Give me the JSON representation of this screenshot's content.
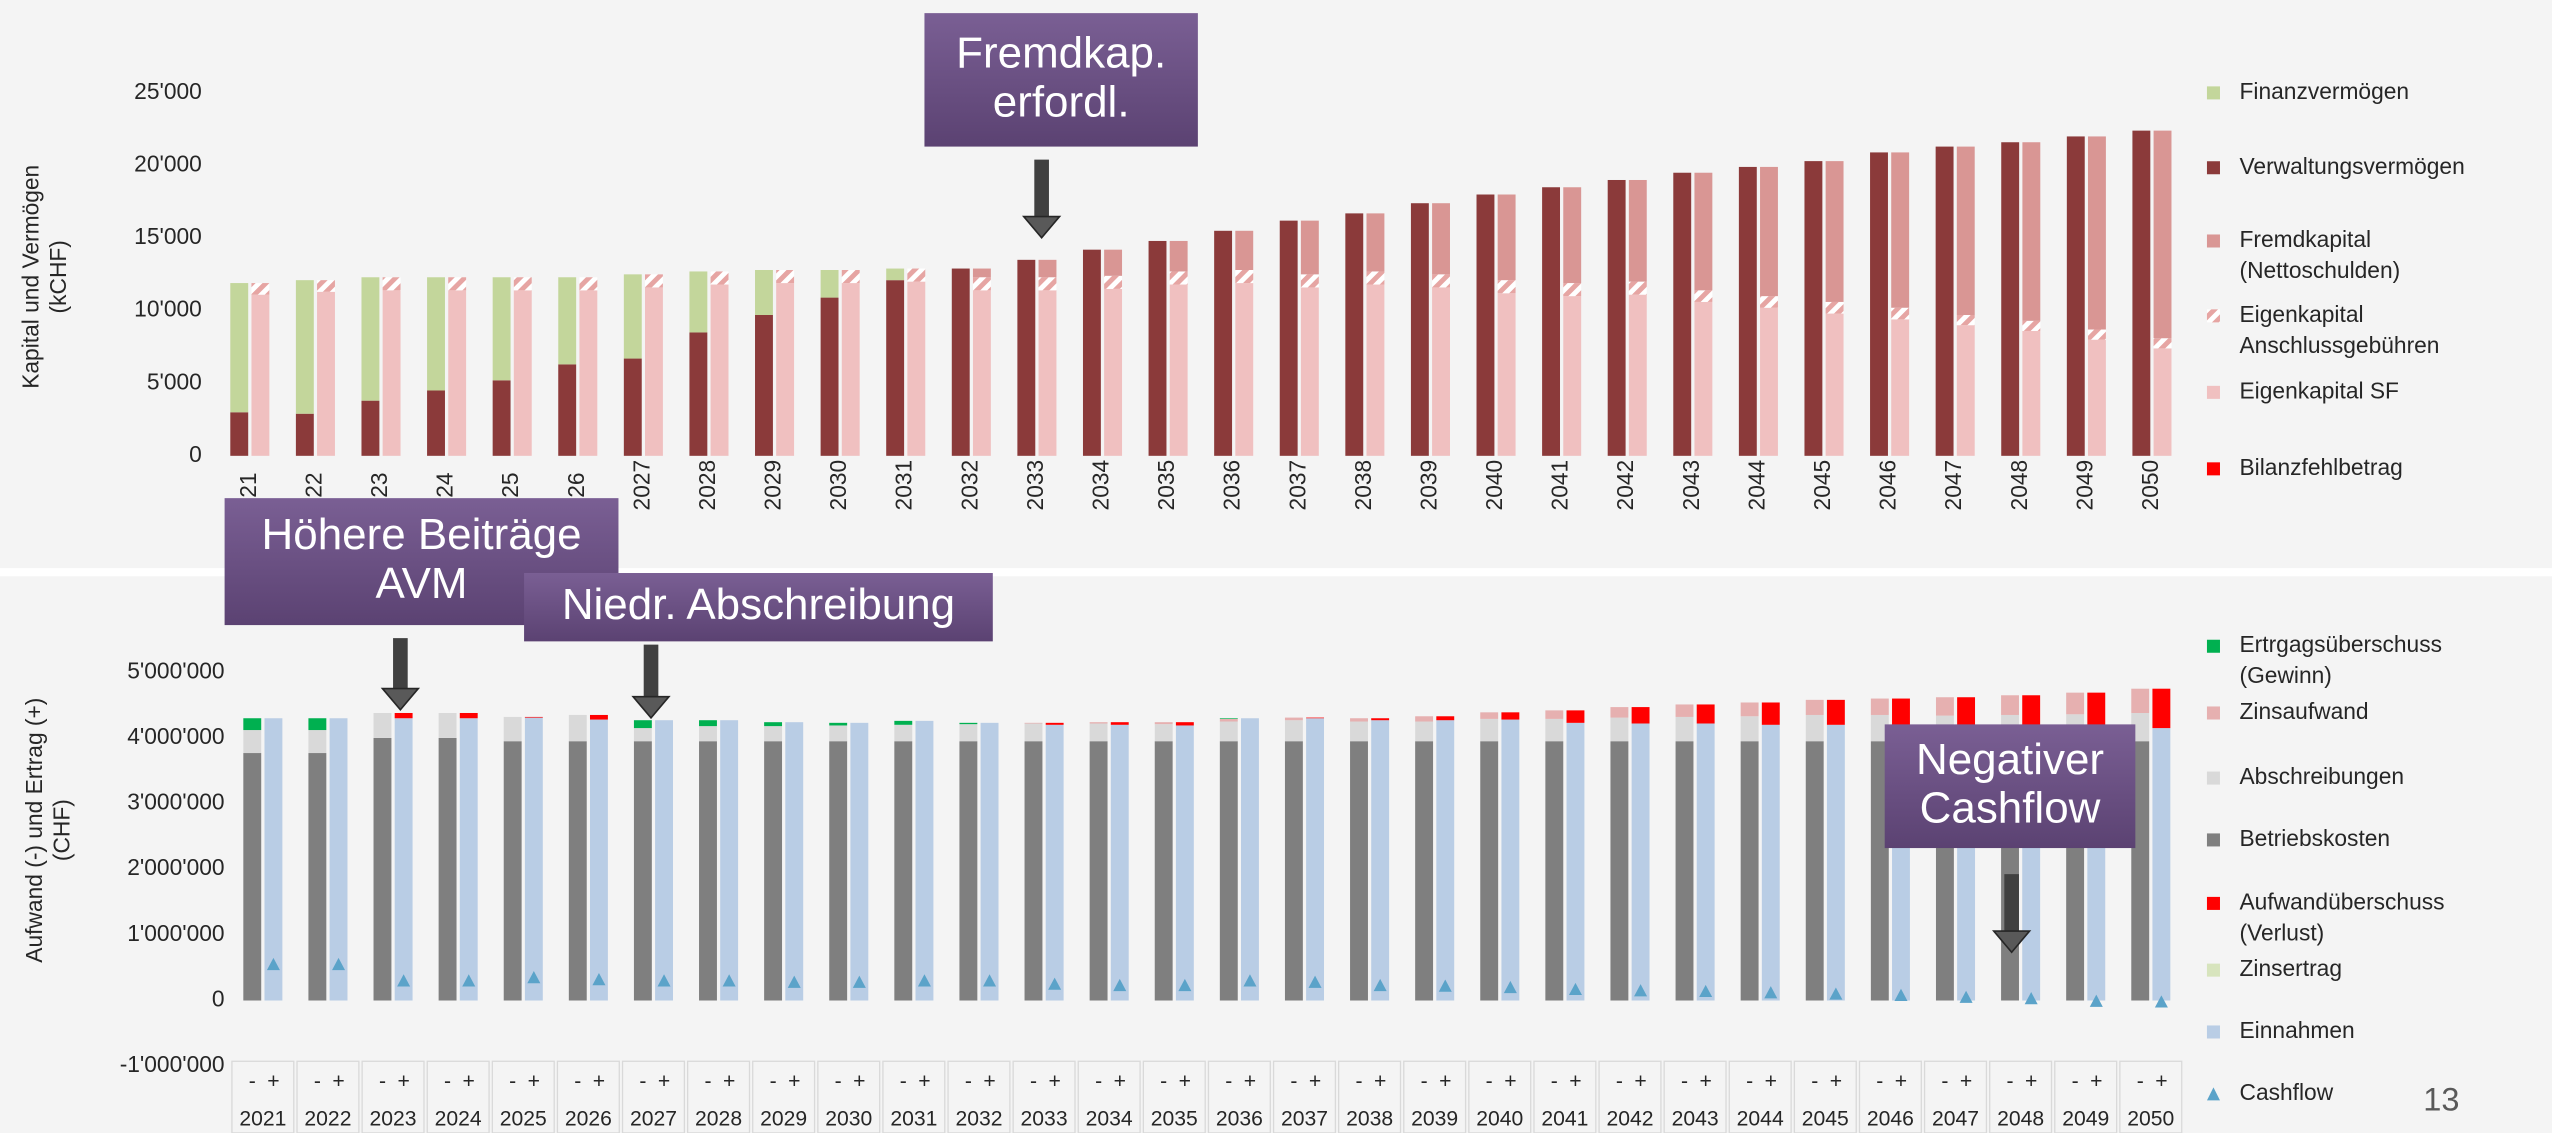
{
  "chart_data": [
    {
      "type": "bar",
      "stacked": true,
      "y_label": "Kapital und Vermögen\n(kCHF)",
      "categories": [
        "21",
        "22",
        "23",
        "24",
        "25",
        "26",
        "2027",
        "2028",
        "2029",
        "2030",
        "2031",
        "2032",
        "2033",
        "2034",
        "2035",
        "2036",
        "2037",
        "2038",
        "2039",
        "2040",
        "2041",
        "2042",
        "2043",
        "2044",
        "2045",
        "2046",
        "2047",
        "2048",
        "2049",
        "2050"
      ],
      "ylim": [
        0,
        25000
      ],
      "yticks": [
        0,
        {
          "value": 5000,
          "label": "5'000"
        },
        {
          "value": 10000,
          "label": "10'000"
        },
        {
          "value": 15000,
          "label": "15'000"
        },
        {
          "value": 20000,
          "label": "20'000"
        },
        {
          "value": 25000,
          "label": "25'000"
        }
      ],
      "series": [
        {
          "name": "Finanzvermögen",
          "color": "#c3d69b",
          "stack": "left",
          "values": [
            8900,
            9200,
            8500,
            7800,
            7100,
            6000,
            5800,
            4200,
            3100,
            1900,
            800,
            0,
            0,
            0,
            0,
            0,
            0,
            0,
            0,
            0,
            0,
            0,
            0,
            0,
            0,
            0,
            0,
            0,
            0,
            0
          ]
        },
        {
          "name": "Verwaltungsvermögen",
          "color": "#8b3a3a",
          "stack": "left",
          "values": [
            3000,
            2900,
            3800,
            4500,
            5200,
            6300,
            6700,
            8500,
            9700,
            10900,
            12100,
            12900,
            13500,
            14200,
            14800,
            15500,
            16200,
            16700,
            17400,
            18000,
            18500,
            19000,
            19500,
            19900,
            20300,
            20900,
            21300,
            21600,
            22000,
            22400
          ]
        },
        {
          "name": "Fremdkapital\n(Nettoschulden)",
          "color": "#d99694",
          "stack": "right",
          "values": [
            0,
            0,
            0,
            0,
            0,
            0,
            0,
            0,
            0,
            0,
            0,
            600,
            1200,
            1800,
            2100,
            2700,
            3700,
            4000,
            4900,
            5900,
            6600,
            7000,
            8100,
            8900,
            9700,
            10700,
            11600,
            12300,
            13300,
            14300
          ]
        },
        {
          "name": "Eigenkapital\nAnschlussgebühren",
          "color": "#e6a5a3",
          "hatch": true,
          "stack": "right",
          "values": [
            800,
            800,
            900,
            900,
            900,
            900,
            900,
            900,
            900,
            900,
            900,
            900,
            900,
            900,
            900,
            900,
            900,
            900,
            900,
            900,
            900,
            900,
            800,
            800,
            800,
            800,
            700,
            700,
            700,
            700
          ]
        },
        {
          "name": "Eigenkapital SF",
          "color": "#f0c0c0",
          "stack": "right",
          "values": [
            11100,
            11300,
            11400,
            11400,
            11400,
            11400,
            11600,
            11800,
            11900,
            11900,
            12000,
            11400,
            11400,
            11500,
            11800,
            11900,
            11600,
            11800,
            11600,
            11200,
            11000,
            11100,
            10600,
            10200,
            9800,
            9400,
            9000,
            8600,
            8000,
            7400
          ]
        },
        {
          "name": "Bilanzfehlbetrag",
          "color": "#ff0000",
          "stack": "right",
          "values": [
            0,
            0,
            0,
            0,
            0,
            0,
            0,
            0,
            0,
            0,
            0,
            0,
            0,
            0,
            0,
            0,
            0,
            0,
            0,
            0,
            0,
            0,
            0,
            0,
            0,
            0,
            0,
            0,
            0,
            0
          ]
        }
      ],
      "annotations": [
        "Fremdkap.\nerfordl."
      ]
    },
    {
      "type": "bar",
      "stacked": true,
      "y_label": "Aufwand (-) und Ertrag (+)\n(CHF)",
      "categories": [
        "2021",
        "2022",
        "2023",
        "2024",
        "2025",
        "2026",
        "2027",
        "2028",
        "2029",
        "2030",
        "2031",
        "2032",
        "2033",
        "2034",
        "2035",
        "2036",
        "2037",
        "2038",
        "2039",
        "2040",
        "2041",
        "2042",
        "2043",
        "2044",
        "2045",
        "2046",
        "2047",
        "2048",
        "2049",
        "2050"
      ],
      "group_labels": [
        "-",
        "+"
      ],
      "ylim": [
        -1000000,
        5000000
      ],
      "yticks": [
        {
          "value": -1000000,
          "label": "-1'000'000"
        },
        0,
        {
          "value": 1000000,
          "label": "1'000'000"
        },
        {
          "value": 2000000,
          "label": "2'000'000"
        },
        {
          "value": 3000000,
          "label": "3'000'000"
        },
        {
          "value": 4000000,
          "label": "4'000'000"
        },
        {
          "value": 5000000,
          "label": "5'000'000"
        }
      ],
      "series": [
        {
          "name": "Ertrgagsüberschuss\n(Gewinn)",
          "color": "#00b050",
          "stack": "left",
          "values": [
            180000,
            180000,
            0,
            0,
            0,
            0,
            120000,
            90000,
            60000,
            40000,
            60000,
            20000,
            0,
            0,
            0,
            10000,
            0,
            0,
            0,
            0,
            0,
            0,
            0,
            0,
            0,
            0,
            0,
            0,
            0,
            0
          ]
        },
        {
          "name": "Zinsaufwand",
          "color": "#e6b0b0",
          "stack": "left",
          "values": [
            0,
            0,
            0,
            0,
            0,
            0,
            0,
            0,
            0,
            0,
            0,
            0,
            10000,
            20000,
            30000,
            40000,
            40000,
            50000,
            80000,
            100000,
            130000,
            160000,
            190000,
            210000,
            230000,
            250000,
            280000,
            300000,
            330000,
            370000
          ]
        },
        {
          "name": "Abschreibungen",
          "color": "#d9d9d9",
          "stack": "left",
          "values": [
            350000,
            350000,
            380000,
            380000,
            370000,
            400000,
            200000,
            230000,
            230000,
            240000,
            250000,
            260000,
            270000,
            270000,
            260000,
            300000,
            320000,
            300000,
            300000,
            340000,
            340000,
            360000,
            370000,
            380000,
            400000,
            400000,
            390000,
            400000,
            410000,
            430000
          ]
        },
        {
          "name": "Betriebskosten",
          "color": "#7f7f7f",
          "stack": "left",
          "values": [
            3770000,
            3770000,
            4000000,
            4000000,
            3950000,
            3950000,
            3950000,
            3950000,
            3950000,
            3950000,
            3950000,
            3950000,
            3950000,
            3950000,
            3950000,
            3950000,
            3950000,
            3950000,
            3950000,
            3950000,
            3950000,
            3950000,
            3950000,
            3950000,
            3950000,
            3950000,
            3950000,
            3950000,
            3950000,
            3950000
          ]
        },
        {
          "name": "Aufwandüberschuss\n(Verlust)",
          "color": "#ff0000",
          "stack": "right",
          "values": [
            0,
            0,
            80000,
            80000,
            10000,
            70000,
            0,
            0,
            0,
            0,
            0,
            0,
            30000,
            40000,
            50000,
            0,
            10000,
            30000,
            60000,
            110000,
            190000,
            250000,
            290000,
            340000,
            380000,
            400000,
            420000,
            450000,
            490000,
            600000
          ]
        },
        {
          "name": "Zinsertrag",
          "color": "#d7e4bd",
          "stack": "right",
          "values": [
            0,
            0,
            0,
            0,
            0,
            0,
            0,
            0,
            0,
            0,
            0,
            0,
            0,
            0,
            0,
            0,
            0,
            0,
            0,
            0,
            0,
            0,
            0,
            0,
            0,
            0,
            0,
            0,
            0,
            0
          ]
        },
        {
          "name": "Einnahmen",
          "color": "#b9cde5",
          "stack": "right",
          "values": [
            4300000,
            4300000,
            4300000,
            4300000,
            4310000,
            4280000,
            4270000,
            4270000,
            4240000,
            4230000,
            4260000,
            4230000,
            4200000,
            4200000,
            4190000,
            4300000,
            4300000,
            4270000,
            4270000,
            4280000,
            4230000,
            4220000,
            4220000,
            4200000,
            4200000,
            4200000,
            4200000,
            4200000,
            4200000,
            4150000
          ]
        },
        {
          "name": "Cashflow",
          "color": "#5ba3c9",
          "marker": "triangle",
          "values": [
            550000,
            550000,
            300000,
            300000,
            350000,
            320000,
            300000,
            300000,
            280000,
            280000,
            300000,
            300000,
            250000,
            230000,
            230000,
            300000,
            280000,
            230000,
            220000,
            200000,
            170000,
            150000,
            140000,
            120000,
            100000,
            80000,
            50000,
            30000,
            -10000,
            -20000
          ]
        }
      ],
      "annotations": [
        "Höhere Beiträge\nAVM",
        "Niedr. Abschreibung",
        "Negativer\nCashflow"
      ]
    }
  ],
  "page_number": "13"
}
